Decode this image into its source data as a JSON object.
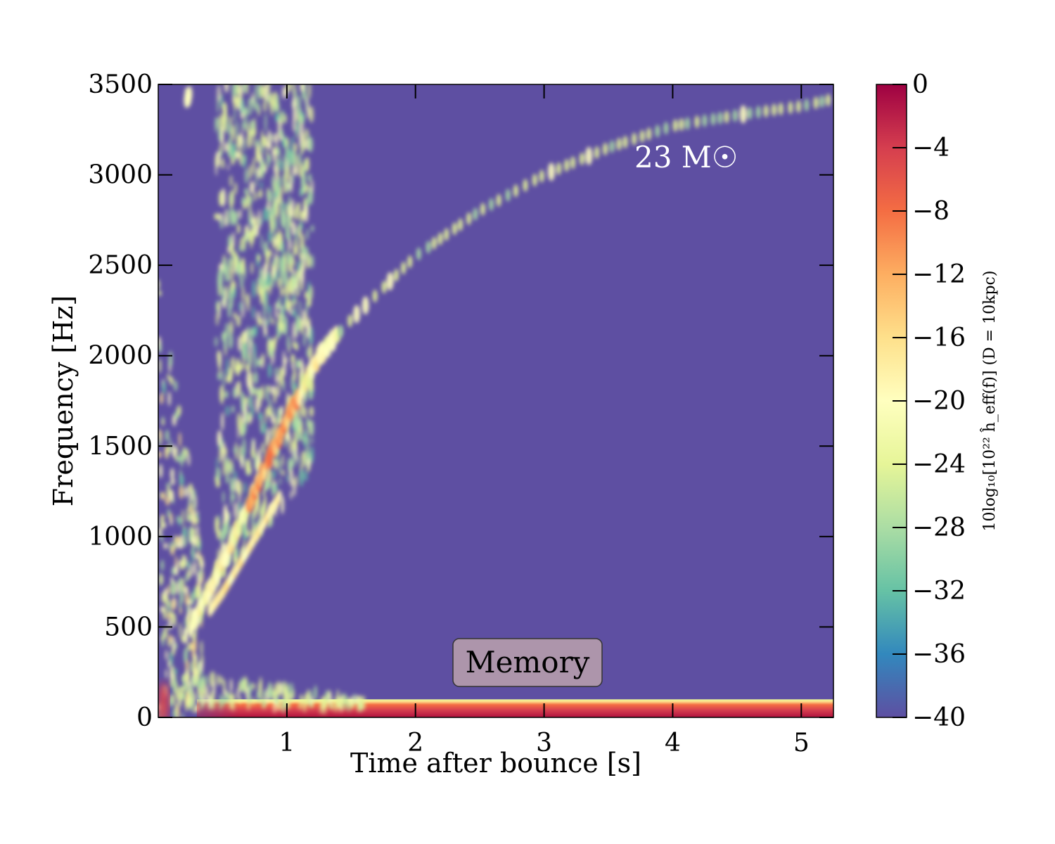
{
  "chart_data": {
    "type": "heatmap",
    "title": "",
    "xlabel": "Time after bounce [s]",
    "ylabel": "Frequency [Hz]",
    "xlim": [
      0.0,
      5.25
    ],
    "ylim": [
      0,
      3500
    ],
    "xticks": [
      1,
      2,
      3,
      4,
      5
    ],
    "xtick_labels": [
      "1",
      "2",
      "3",
      "4",
      "5"
    ],
    "yticks": [
      0,
      500,
      1000,
      1500,
      2000,
      2500,
      3000,
      3500
    ],
    "ytick_labels": [
      "0",
      "500",
      "1000",
      "1500",
      "2000",
      "2500",
      "3000",
      "3500"
    ],
    "colorbar": {
      "label": "10log₁₀[10²² ĥ_eff(f)] (D = 10kpc)",
      "range": [
        -40,
        0
      ],
      "ticks": [
        0,
        -4,
        -8,
        -12,
        -16,
        -20,
        -24,
        -28,
        -32,
        -36,
        -40
      ],
      "tick_labels": [
        "0",
        "−4",
        "−8",
        "−12",
        "−16",
        "−20",
        "−24",
        "−28",
        "−32",
        "−36",
        "−40"
      ],
      "colormap": "Spectral_r",
      "stops": [
        "#5e4fa2",
        "#3288bd",
        "#66c2a5",
        "#abdda4",
        "#e6f598",
        "#ffffbf",
        "#fee08b",
        "#fdae61",
        "#f46d43",
        "#d53e4f",
        "#9e0142"
      ]
    },
    "background_value": -40,
    "features": [
      {
        "name": "high-frequency-track",
        "points": [
          [
            0.25,
            500
          ],
          [
            0.5,
            850
          ],
          [
            0.75,
            1250
          ],
          [
            1.0,
            1650
          ],
          [
            1.25,
            2000
          ],
          [
            1.5,
            2200
          ],
          [
            2.0,
            2550
          ],
          [
            2.5,
            2800
          ],
          [
            3.0,
            3000
          ],
          [
            3.5,
            3150
          ],
          [
            4.0,
            3270
          ],
          [
            4.5,
            3330
          ],
          [
            5.0,
            3380
          ],
          [
            5.25,
            3420
          ]
        ]
      },
      {
        "name": "memory-band",
        "frequency_range": [
          0,
          100
        ],
        "time_range": [
          0.0,
          5.25
        ],
        "peak_value": -2
      }
    ],
    "annotations": [
      {
        "text": "23 M☉",
        "x": 4.05,
        "y": 3050
      },
      {
        "text": "Memory",
        "x": 2.55,
        "y": 300
      }
    ]
  }
}
